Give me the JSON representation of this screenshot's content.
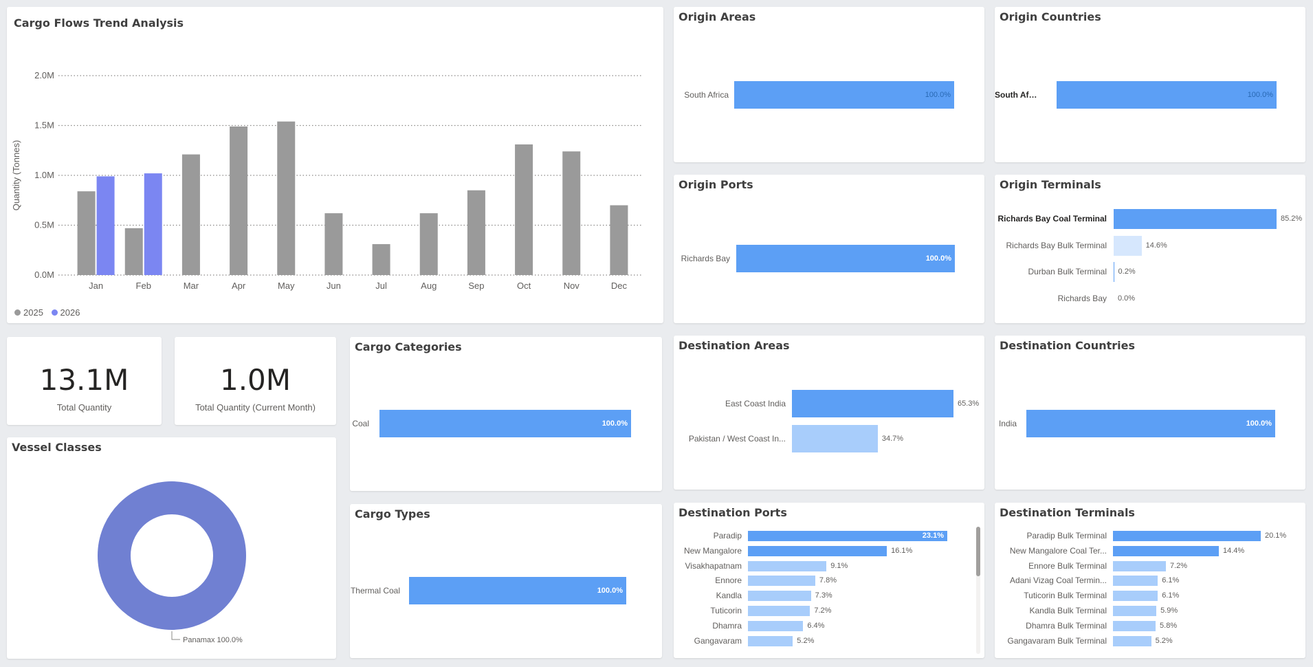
{
  "colors": {
    "year_2025": "#9a9a9a",
    "year_2026": "#7b86f2",
    "bar_primary": "#5c9ff5",
    "bar_light": "#a8cdfb",
    "bar_faint": "#d6e7fd",
    "donut": "#7080d2"
  },
  "trend": {
    "title": "Cargo Flows Trend Analysis",
    "chart_data": {
      "type": "bar",
      "title": "Cargo Flows Trend Analysis",
      "xlabel": "",
      "ylabel": "Quantity (Tonnes)",
      "ylim": [
        0,
        2.0
      ],
      "y_ticks": [
        "0.0M",
        "0.5M",
        "1.0M",
        "1.5M",
        "2.0M"
      ],
      "y_tick_values": [
        0,
        0.5,
        1.0,
        1.5,
        2.0
      ],
      "grid": true,
      "legend_position": "bottom-left",
      "categories": [
        "Jan",
        "Feb",
        "Mar",
        "Apr",
        "May",
        "Jun",
        "Jul",
        "Aug",
        "Sep",
        "Oct",
        "Nov",
        "Dec"
      ],
      "series": [
        {
          "name": "2025",
          "values": [
            0.84,
            0.47,
            1.21,
            1.49,
            1.54,
            0.62,
            0.31,
            0.62,
            0.85,
            1.31,
            1.24,
            0.7
          ]
        },
        {
          "name": "2026",
          "values": [
            0.99,
            1.02,
            null,
            null,
            null,
            null,
            null,
            null,
            null,
            null,
            null,
            null
          ]
        }
      ]
    }
  },
  "kpis": [
    {
      "value": "13.1M",
      "label": "Total Quantity"
    },
    {
      "value": "1.0M",
      "label": "Total Quantity (Current Month)"
    }
  ],
  "vessel_classes": {
    "title": "Vessel Classes",
    "chart_data": {
      "type": "pie",
      "donut": true,
      "categories": [
        "Panamax"
      ],
      "values": [
        100.0
      ],
      "data_labels": [
        "Panamax 100.0%"
      ]
    }
  },
  "cargo_categories": {
    "title": "Cargo Categories",
    "chart_data": {
      "type": "bar",
      "orientation": "horizontal",
      "categories": [
        "Coal"
      ],
      "values": [
        100.0
      ],
      "labels": [
        "100.0%"
      ]
    }
  },
  "cargo_types": {
    "title": "Cargo Types",
    "chart_data": {
      "type": "bar",
      "orientation": "horizontal",
      "categories": [
        "Thermal Coal"
      ],
      "values": [
        100.0
      ],
      "labels": [
        "100.0%"
      ]
    }
  },
  "origin_areas": {
    "title": "Origin Areas",
    "chart_data": {
      "type": "bar",
      "orientation": "horizontal",
      "categories": [
        "South Africa"
      ],
      "values": [
        100.0
      ],
      "labels": [
        "100.0%"
      ]
    }
  },
  "origin_countries": {
    "title": "Origin Countries",
    "chart_data": {
      "type": "bar",
      "orientation": "horizontal",
      "categories": [
        "South Africa"
      ],
      "values": [
        100.0
      ],
      "labels": [
        "100.0%"
      ]
    }
  },
  "origin_ports": {
    "title": "Origin Ports",
    "chart_data": {
      "type": "bar",
      "orientation": "horizontal",
      "categories": [
        "Richards Bay"
      ],
      "values": [
        100.0
      ],
      "labels": [
        "100.0%"
      ]
    }
  },
  "origin_terminals": {
    "title": "Origin Terminals",
    "chart_data": {
      "type": "bar",
      "orientation": "horizontal",
      "categories": [
        "Richards Bay Coal Terminal",
        "Richards Bay Bulk Terminal",
        "Durban Bulk Terminal",
        "Richards Bay"
      ],
      "values": [
        85.2,
        14.6,
        0.2,
        0.0
      ],
      "labels": [
        "85.2%",
        "14.6%",
        "0.2%",
        "0.0%"
      ]
    }
  },
  "destination_areas": {
    "title": "Destination Areas",
    "chart_data": {
      "type": "bar",
      "orientation": "horizontal",
      "categories": [
        "East Coast India",
        "Pakistan / West Coast In..."
      ],
      "values": [
        65.3,
        34.7
      ],
      "labels": [
        "65.3%",
        "34.7%"
      ]
    }
  },
  "destination_countries": {
    "title": "Destination Countries",
    "chart_data": {
      "type": "bar",
      "orientation": "horizontal",
      "categories": [
        "India"
      ],
      "values": [
        100.0
      ],
      "labels": [
        "100.0%"
      ]
    }
  },
  "destination_ports": {
    "title": "Destination Ports",
    "chart_data": {
      "type": "bar",
      "orientation": "horizontal",
      "categories": [
        "Paradip",
        "New Mangalore",
        "Visakhapatnam",
        "Ennore",
        "Kandla",
        "Tuticorin",
        "Dhamra",
        "Gangavaram"
      ],
      "values": [
        23.1,
        16.1,
        9.1,
        7.8,
        7.3,
        7.2,
        6.4,
        5.2
      ],
      "labels": [
        "23.1%",
        "16.1%",
        "9.1%",
        "7.8%",
        "7.3%",
        "7.2%",
        "6.4%",
        "5.2%"
      ]
    }
  },
  "destination_terminals": {
    "title": "Destination Terminals",
    "chart_data": {
      "type": "bar",
      "orientation": "horizontal",
      "categories": [
        "Paradip Bulk Terminal",
        "New Mangalore Coal Ter...",
        "Ennore Bulk Terminal",
        "Adani Vizag Coal Termin...",
        "Tuticorin Bulk Terminal",
        "Kandla Bulk Terminal",
        "Dhamra Bulk Terminal",
        "Gangavaram Bulk Terminal"
      ],
      "values": [
        20.1,
        14.4,
        7.2,
        6.1,
        6.1,
        5.9,
        5.8,
        5.2
      ],
      "labels": [
        "20.1%",
        "14.4%",
        "7.2%",
        "6.1%",
        "6.1%",
        "5.9%",
        "5.8%",
        "5.2%"
      ]
    }
  }
}
